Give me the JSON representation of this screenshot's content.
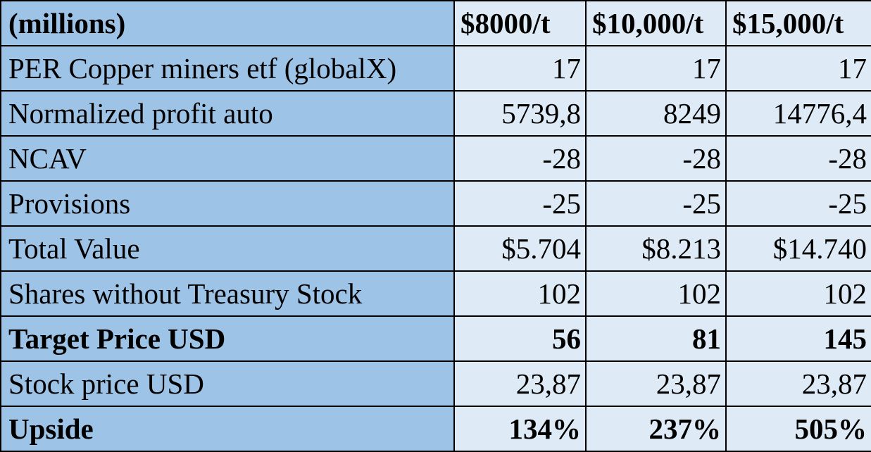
{
  "table": {
    "header": {
      "label": "(millions)",
      "columns": [
        "$8000/t",
        "$10,000/t",
        "$15,000/t"
      ]
    },
    "rows": [
      {
        "label": "PER Copper miners etf (globalX)",
        "values": [
          "17",
          "17",
          "17"
        ],
        "bold": false
      },
      {
        "label": "Normalized profit auto",
        "values": [
          "5739,8",
          "8249",
          "14776,4"
        ],
        "bold": false
      },
      {
        "label": "NCAV",
        "values": [
          "-28",
          "-28",
          "-28"
        ],
        "bold": false
      },
      {
        "label": "Provisions",
        "values": [
          "-25",
          "-25",
          "-25"
        ],
        "bold": false
      },
      {
        "label": "Total Value",
        "values": [
          "$5.704",
          "$8.213",
          "$14.740"
        ],
        "bold": false
      },
      {
        "label": "Shares without Treasury Stock",
        "values": [
          "102",
          "102",
          "102"
        ],
        "bold": false
      },
      {
        "label": "Target Price USD",
        "values": [
          "56",
          "81",
          "145"
        ],
        "bold": true
      },
      {
        "label": "Stock price USD",
        "values": [
          "23,87",
          "23,87",
          "23,87"
        ],
        "bold": false
      },
      {
        "label": "Upside",
        "values": [
          "134%",
          "237%",
          "505%"
        ],
        "bold": true
      }
    ]
  },
  "colors": {
    "label_fill": "#9dc3e6",
    "value_fill": "#deebf7",
    "border": "#000000"
  }
}
